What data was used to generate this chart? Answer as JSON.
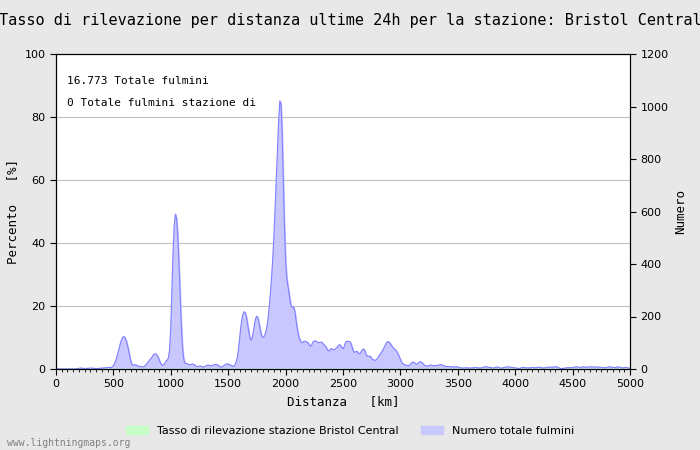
{
  "title": "Tasso di rilevazione per distanza ultime 24h per la stazione: Bristol Central",
  "xlabel": "Distanza   [km]",
  "ylabel_left": "Percento   [%]",
  "ylabel_right": "Numero",
  "annotation_line1": "16.773 Totale fulmini",
  "annotation_line2": "0 Totale fulmini stazione di",
  "legend_label1": "Tasso di rilevazione stazione Bristol Central",
  "legend_label2": "Numero totale fulmini",
  "watermark": "www.lightningmaps.org",
  "xlim": [
    0,
    5000
  ],
  "ylim_left": [
    0,
    100
  ],
  "ylim_right": [
    0,
    1200
  ],
  "xticks": [
    0,
    500,
    1000,
    1500,
    2000,
    2500,
    3000,
    3500,
    4000,
    4500,
    5000
  ],
  "yticks_left": [
    0,
    20,
    40,
    60,
    80,
    100
  ],
  "yticks_right": [
    0,
    200,
    400,
    600,
    800,
    1000,
    1200
  ],
  "bg_color": "#e8e8e8",
  "plot_bg_color": "#ffffff",
  "line_color": "#8080ff",
  "fill_color_blue": "#c8c8ff",
  "fill_color_green": "#c8ffc8",
  "grid_color": "#c0c0c0",
  "title_fontsize": 11,
  "label_fontsize": 9,
  "tick_fontsize": 8,
  "figsize": [
    7.0,
    4.5
  ],
  "dpi": 100
}
